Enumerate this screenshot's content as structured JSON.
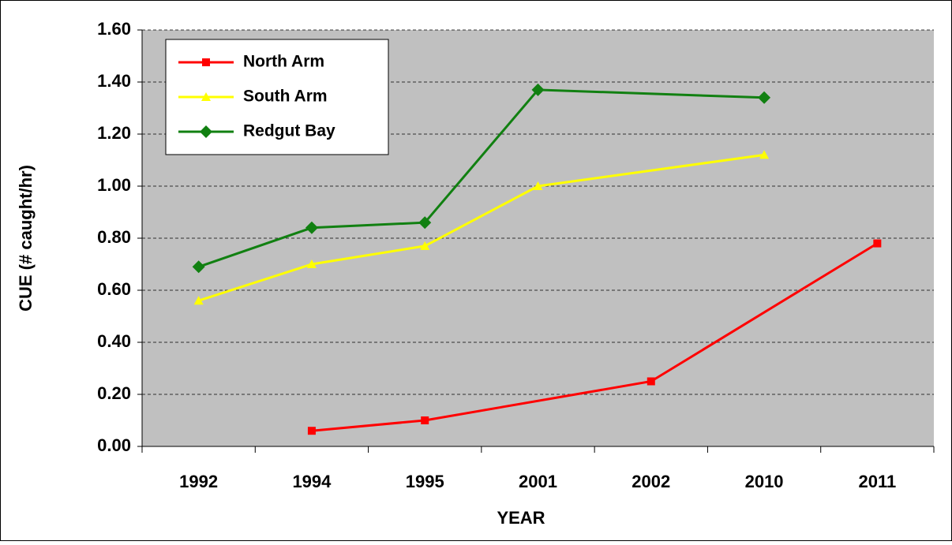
{
  "chart_data": {
    "type": "line",
    "x_label": "YEAR",
    "y_label": "CUE (# caught/hr)",
    "categories": [
      "1992",
      "1994",
      "1995",
      "2001",
      "2002",
      "2010",
      "2011"
    ],
    "series": [
      {
        "name": "North Arm",
        "color": "#ff0000",
        "marker": "square",
        "values": [
          null,
          0.06,
          0.1,
          null,
          0.25,
          null,
          0.78
        ]
      },
      {
        "name": "South Arm",
        "color": "#ffff00",
        "marker": "triangle",
        "values": [
          0.56,
          0.7,
          0.77,
          1.0,
          null,
          1.12,
          null
        ]
      },
      {
        "name": "Redgut Bay",
        "color": "#118011",
        "marker": "diamond",
        "values": [
          0.69,
          0.84,
          0.86,
          1.37,
          null,
          1.34,
          null
        ]
      }
    ],
    "ylim": [
      0,
      1.6
    ],
    "yticks": [
      {
        "value": 0,
        "label": "0.00"
      },
      {
        "value": 0.2,
        "label": "0.20"
      },
      {
        "value": 0.4,
        "label": "0.40"
      },
      {
        "value": 0.6,
        "label": "0.60"
      },
      {
        "value": 0.8,
        "label": "0.80"
      },
      {
        "value": 1.0,
        "label": "1.00"
      },
      {
        "value": 1.2,
        "label": "1.20"
      },
      {
        "value": 1.4,
        "label": "1.40"
      },
      {
        "value": 1.6,
        "label": "1.60"
      }
    ],
    "grid": true,
    "span_gaps": true,
    "plot_background": "#c0c0c0",
    "legend_position": "upper-left"
  }
}
